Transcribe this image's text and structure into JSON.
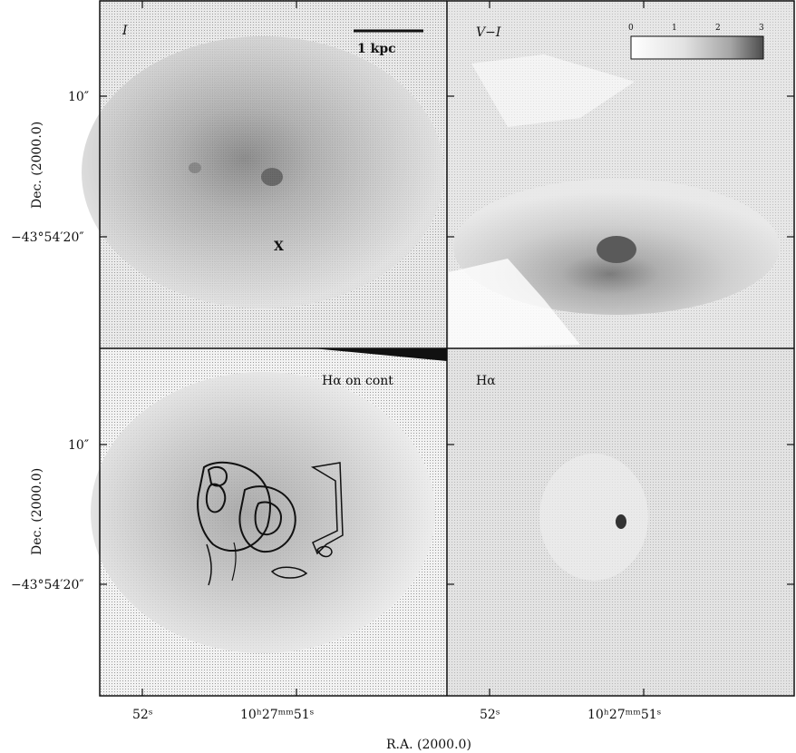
{
  "panels": {
    "top_left": {
      "label": "I",
      "scalebar_label": "1 kpc",
      "marker": "X"
    },
    "top_right": {
      "label": "V−I",
      "colorbar_ticks": [
        "0",
        "1",
        "2",
        "3"
      ]
    },
    "bottom_left": {
      "label": "Hα on cont"
    },
    "bottom_right": {
      "label": "Hα"
    }
  },
  "axes": {
    "y_ticks_top": [
      "10″",
      "−43°54′20″"
    ],
    "y_ticks_bottom": [
      "10″",
      "−43°54′20″"
    ],
    "y_label": "Dec.  (2000.0)",
    "x_ticks_left": [
      "52ˢ",
      "10ʰ27ᵐᵐ51ˢ"
    ],
    "x_ticks_right": [
      "52ˢ",
      "10ʰ27ᵐᵐ51ˢ"
    ],
    "x_label": "R.A.  (2000.0)"
  },
  "colors": {
    "background": "#ffffff",
    "frame": "#111111",
    "grey_light": "#e6e6e6",
    "grey_mid": "#c4c4c4",
    "grey_dark": "#8a8a8a"
  }
}
